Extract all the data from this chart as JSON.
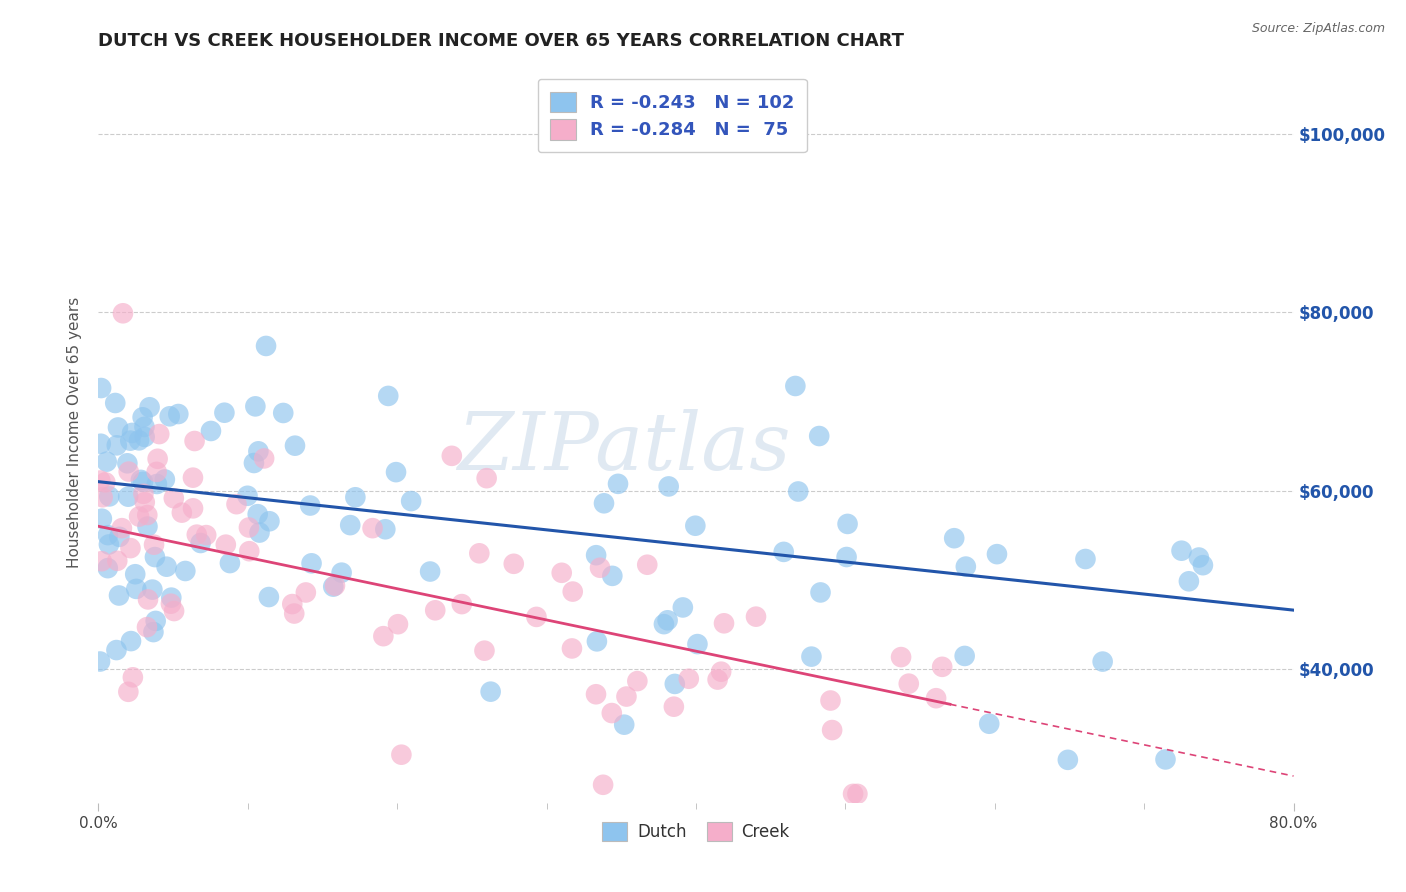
{
  "title": "DUTCH VS CREEK HOUSEHOLDER INCOME OVER 65 YEARS CORRELATION CHART",
  "source": "Source: ZipAtlas.com",
  "ylabel": "Householder Income Over 65 years",
  "ytick_labels": [
    "$40,000",
    "$60,000",
    "$80,000",
    "$100,000"
  ],
  "ytick_values": [
    40000,
    60000,
    80000,
    100000
  ],
  "dutch_R": -0.243,
  "dutch_N": 102,
  "creek_R": -0.284,
  "creek_N": 75,
  "dutch_color": "#8EC4EE",
  "creek_color": "#F5AECA",
  "dutch_line_color": "#2255AA",
  "creek_line_color": "#DD4477",
  "background_color": "#FFFFFF",
  "grid_color": "#CCCCCC",
  "title_color": "#222222",
  "source_color": "#666666",
  "legend_text_color": "#3355BB",
  "yaxis_label_color": "#555555",
  "watermark": "ZIPatlas",
  "xmin": 0.0,
  "xmax": 0.8,
  "ymin": 25000,
  "ymax": 108000,
  "dutch_seed": 12,
  "creek_seed": 99
}
